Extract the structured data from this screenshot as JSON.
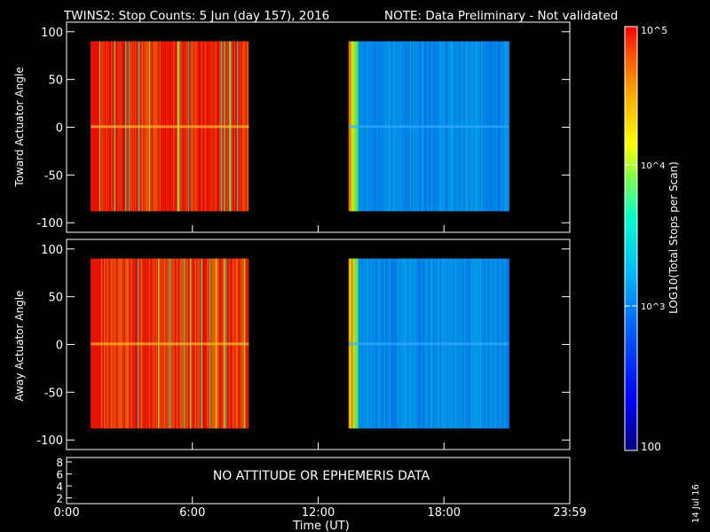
{
  "header": {
    "title": "TWINS2: Stop Counts:  5 Jun (day 157), 2016",
    "note": "NOTE: Data Preliminary - Not validated",
    "note_color": "#ff1a1a"
  },
  "side_date": "14 Jul 16",
  "colorbar": {
    "label": "LOG10(Total Stops per Scan)",
    "top_label": "10^5",
    "mid_label": "10^4",
    "low_label": "10^3",
    "bottom_label": "100",
    "scale": "log",
    "range": [
      100,
      100000
    ]
  },
  "footer_panel": {
    "message": "NO ATTITUDE OR EPHEMERIS DATA",
    "yticks": [
      "8",
      "6",
      "4",
      "2"
    ]
  },
  "chart_data": [
    {
      "type": "heatmap",
      "panel": "top",
      "title": "",
      "xlabel": "",
      "ylabel": "Toward Actuator Angle",
      "xlim": [
        0,
        24
      ],
      "ylim": [
        -110,
        110
      ],
      "yticks": [
        "100",
        "50",
        "0",
        "-50",
        "-100"
      ],
      "data_blocks": [
        {
          "t_start_hr": 1.15,
          "t_end_hr": 8.7,
          "angle_min": -88,
          "angle_max": 90,
          "dominant_log10": 4.9
        },
        {
          "t_start_hr": 13.45,
          "t_end_hr": 21.1,
          "angle_min": -88,
          "angle_max": 90,
          "dominant_log10": 3.0
        }
      ]
    },
    {
      "type": "heatmap",
      "panel": "bottom",
      "title": "",
      "xlabel": "Time (UT)",
      "ylabel": "Away Actuator Angle",
      "xlim": [
        0,
        24
      ],
      "ylim": [
        -110,
        110
      ],
      "yticks": [
        "100",
        "50",
        "0",
        "-50",
        "-100"
      ],
      "xticks": [
        "0:00",
        "6:00",
        "12:00",
        "18:00",
        "23:59"
      ],
      "data_blocks": [
        {
          "t_start_hr": 1.15,
          "t_end_hr": 8.7,
          "angle_min": -88,
          "angle_max": 90,
          "dominant_log10": 4.85
        },
        {
          "t_start_hr": 13.45,
          "t_end_hr": 21.1,
          "angle_min": -88,
          "angle_max": 90,
          "dominant_log10": 3.0
        }
      ]
    }
  ]
}
